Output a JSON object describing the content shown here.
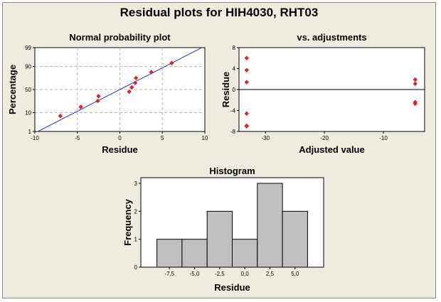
{
  "figure": {
    "title": "Residual plots for HIH4030, RHT03"
  },
  "colors": {
    "background": "#efebde",
    "point": "#e0202a",
    "fit_line": "#2233cc",
    "bar_fill": "#c0c0c0",
    "grid": "#b8b8b8"
  },
  "chart_data": [
    {
      "type": "scatter",
      "title": "Normal probability plot",
      "xlabel": "Residue",
      "ylabel": "Percentage",
      "xlim": [
        -10,
        10
      ],
      "x_ticks": [
        "-10",
        "-5",
        "0",
        "5",
        "10"
      ],
      "y_ticks": [
        "99",
        "90",
        "50",
        "10",
        "1"
      ],
      "y_tick_values": [
        99,
        90,
        50,
        10,
        1
      ],
      "y_scale": "normal-probability",
      "grid": true,
      "fit_line": {
        "mean": 0,
        "sd": 4.15
      },
      "points": [
        {
          "x": -7.0,
          "y": 7.1
        },
        {
          "x": -4.6,
          "y": 16.7
        },
        {
          "x": -2.6,
          "y": 26.2
        },
        {
          "x": -2.5,
          "y": 35.7
        },
        {
          "x": 1.1,
          "y": 45.2
        },
        {
          "x": 1.4,
          "y": 54.8
        },
        {
          "x": 1.8,
          "y": 64.3
        },
        {
          "x": 1.9,
          "y": 73.8
        },
        {
          "x": 3.7,
          "y": 83.3
        },
        {
          "x": 6.1,
          "y": 92.9
        }
      ]
    },
    {
      "type": "scatter",
      "title": "vs. adjustments",
      "xlabel": "Adjusted value",
      "ylabel": "Residue",
      "xlim": [
        -34.5,
        -3
      ],
      "ylim": [
        -8,
        8
      ],
      "x_ticks": [
        "-30",
        "-20",
        "-10"
      ],
      "x_tick_values": [
        -30,
        -20,
        -10
      ],
      "y_ticks": [
        "8",
        "4",
        "0",
        "-4",
        "-8"
      ],
      "y_tick_values": [
        8,
        4,
        0,
        -4,
        -8
      ],
      "reference_line": 0,
      "grid": false,
      "points": [
        {
          "x": -33.2,
          "y": 6.0
        },
        {
          "x": -33.2,
          "y": 3.7
        },
        {
          "x": -33.2,
          "y": 1.4
        },
        {
          "x": -33.2,
          "y": -4.6
        },
        {
          "x": -33.2,
          "y": -6.9
        },
        {
          "x": -33.2,
          "y": -7.0
        },
        {
          "x": -4.6,
          "y": 1.9
        },
        {
          "x": -4.6,
          "y": 1.1
        },
        {
          "x": -4.6,
          "y": -2.4
        },
        {
          "x": -4.6,
          "y": -2.7
        }
      ]
    },
    {
      "type": "bar",
      "title": "Histogram",
      "xlabel": "Residue",
      "ylabel": "Frequency",
      "ylim": [
        0,
        3
      ],
      "y_ticks": [
        "3",
        "2",
        "1",
        "0"
      ],
      "y_tick_values": [
        3,
        2,
        1,
        0
      ],
      "x_ticks": [
        "-7,5",
        "-5,0",
        "-2,5",
        "0,0",
        "2,5",
        "5,0"
      ],
      "x_tick_values": [
        -7.5,
        -5.0,
        -2.5,
        0.0,
        2.5,
        5.0
      ],
      "bin_width": 2.5,
      "bins": [
        -7.5,
        -5.0,
        -2.5,
        0.0,
        2.5,
        5.0
      ],
      "values": [
        1,
        1,
        2,
        1,
        3,
        2
      ]
    }
  ]
}
